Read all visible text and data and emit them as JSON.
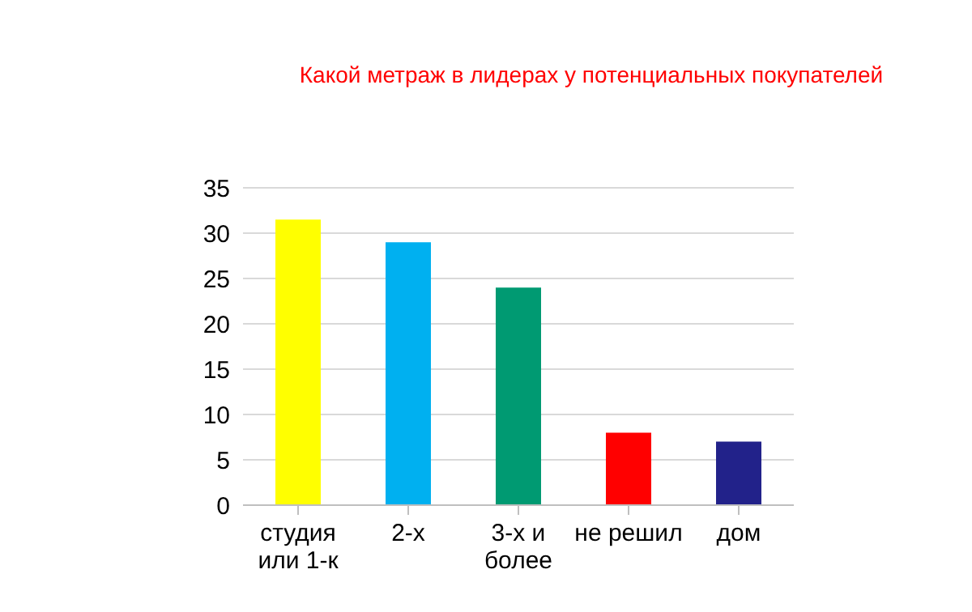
{
  "chart_data": {
    "type": "bar",
    "title": "Какой метраж в лидерах у потенциальных покупателей",
    "categories": [
      "студия или 1-к",
      "2-х",
      "3-х и более",
      "не решил",
      "дом"
    ],
    "values": [
      31.5,
      29,
      24,
      8,
      7
    ],
    "colors": [
      "#ffff00",
      "#00b0f0",
      "#009a72",
      "#ff0000",
      "#22228a"
    ],
    "ylim": [
      0,
      35
    ],
    "yticks": [
      0,
      5,
      10,
      15,
      20,
      25,
      30,
      35
    ],
    "grid": "y"
  }
}
